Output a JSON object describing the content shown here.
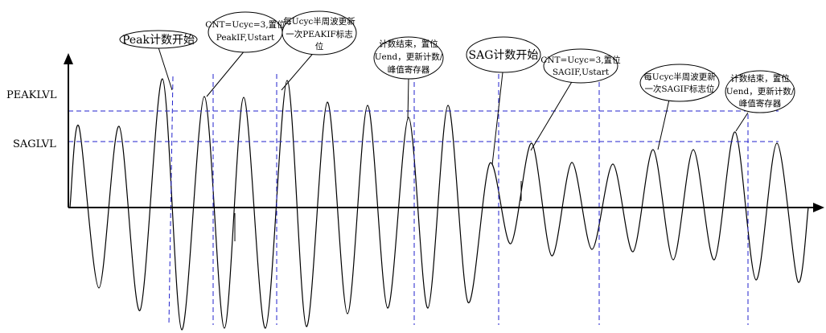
{
  "colors": {
    "wave": "#000000",
    "axis": "#000000",
    "threshold": "#2222cc",
    "marker": "#2222cc"
  },
  "axis": {
    "peak_label": "PEAKLVL",
    "sag_label": "SAGLVL"
  },
  "callouts": {
    "peak_start": "Peak计数开始",
    "peak_set": [
      "CNT=Ucyc=3,置位",
      "PeakIF,Ustart"
    ],
    "peak_flag": [
      "每Ucyc半周波更新",
      "一次PEAKIF标志",
      "位"
    ],
    "peak_end": [
      "计数结束，置位",
      "Uend，更新计数/",
      "峰值寄存器"
    ],
    "sag_start": "SAG计数开始",
    "sag_set": [
      "CNT=Ucyc=3,置位",
      "SAGIF,Ustart"
    ],
    "sag_flag": [
      "每Ucyc半周波更新",
      "一次SAGIF标志位"
    ],
    "sag_end": [
      "计数结束，置位",
      "Uend，更新计数/",
      "峰值寄存器"
    ]
  }
}
